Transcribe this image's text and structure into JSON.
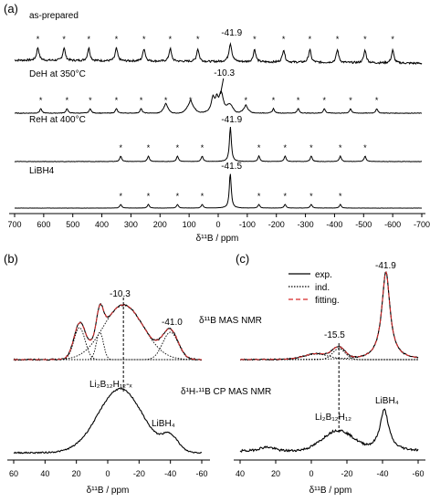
{
  "panel_labels": {
    "a": "(a)",
    "b": "(b)",
    "c": "(c)"
  },
  "colors": {
    "experimental": "#000000",
    "fitting": "#d62728",
    "dashed": "#000000"
  },
  "chart_data": [
    {
      "panel": "a",
      "type": "line",
      "xlabel": "δ¹¹B / ppm",
      "xlim": [
        700,
        -700
      ],
      "x_ticks": [
        700,
        600,
        500,
        400,
        300,
        200,
        100,
        0,
        -100,
        -200,
        -300,
        -400,
        -500,
        -600,
        -700
      ],
      "spinning_sideband_marker": "*",
      "series": [
        {
          "name": "as-prepared",
          "peak_label": "-41.9",
          "center": -41.9,
          "sidebands": [
            620,
            530,
            445,
            350,
            255,
            165,
            70,
            -125,
            -225,
            -315,
            -410,
            -505,
            -600
          ]
        },
        {
          "name": "DeH at 350°C",
          "peak_label": "-10.3",
          "center": -10.3,
          "sidebands": [
            610,
            520,
            440,
            350,
            265,
            180,
            95,
            -95,
            -190,
            -275,
            -365,
            -455,
            -545
          ]
        },
        {
          "name": "ReH at 400°C",
          "peak_label": "-41.9",
          "center": -41.9,
          "sidebands": [
            335,
            240,
            140,
            55,
            -140,
            -230,
            -320,
            -420,
            -505
          ]
        },
        {
          "name": "LiBH4",
          "peak_label": "-41.5",
          "center": -41.5,
          "sidebands": [
            335,
            240,
            140,
            55,
            -140,
            -230,
            -320,
            -420
          ]
        }
      ]
    },
    {
      "panel": "b",
      "type": "line",
      "xlabel": "δ¹¹B / ppm",
      "xlim": [
        60,
        -60
      ],
      "x_ticks": [
        60,
        40,
        20,
        0,
        -20,
        -40,
        -60
      ],
      "upper_title": "δ¹¹B MAS NMR",
      "lower_title": "δ¹H-¹¹B CP MAS NMR",
      "peak_labels": [
        "-10.3",
        "-41.0"
      ],
      "component_labels": [
        "Li₂B₁₂H₁₂-ₓ",
        "LiBH₄"
      ],
      "component_centers": [
        18,
        5,
        -10,
        -40
      ]
    },
    {
      "panel": "c",
      "type": "line",
      "xlabel": "δ¹¹B / ppm",
      "xlim": [
        40,
        -60
      ],
      "x_ticks": [
        40,
        20,
        0,
        -20,
        -40,
        -60
      ],
      "legend": [
        "exp.",
        "ind.",
        "fitting."
      ],
      "legend_position": "top-right",
      "peak_labels": [
        "-41.9",
        "-15.5"
      ],
      "component_labels": [
        "Li₂B₁₂H₁₂",
        "LiBH₄"
      ],
      "component_centers": [
        -41.9,
        -15.5,
        -3
      ]
    }
  ]
}
